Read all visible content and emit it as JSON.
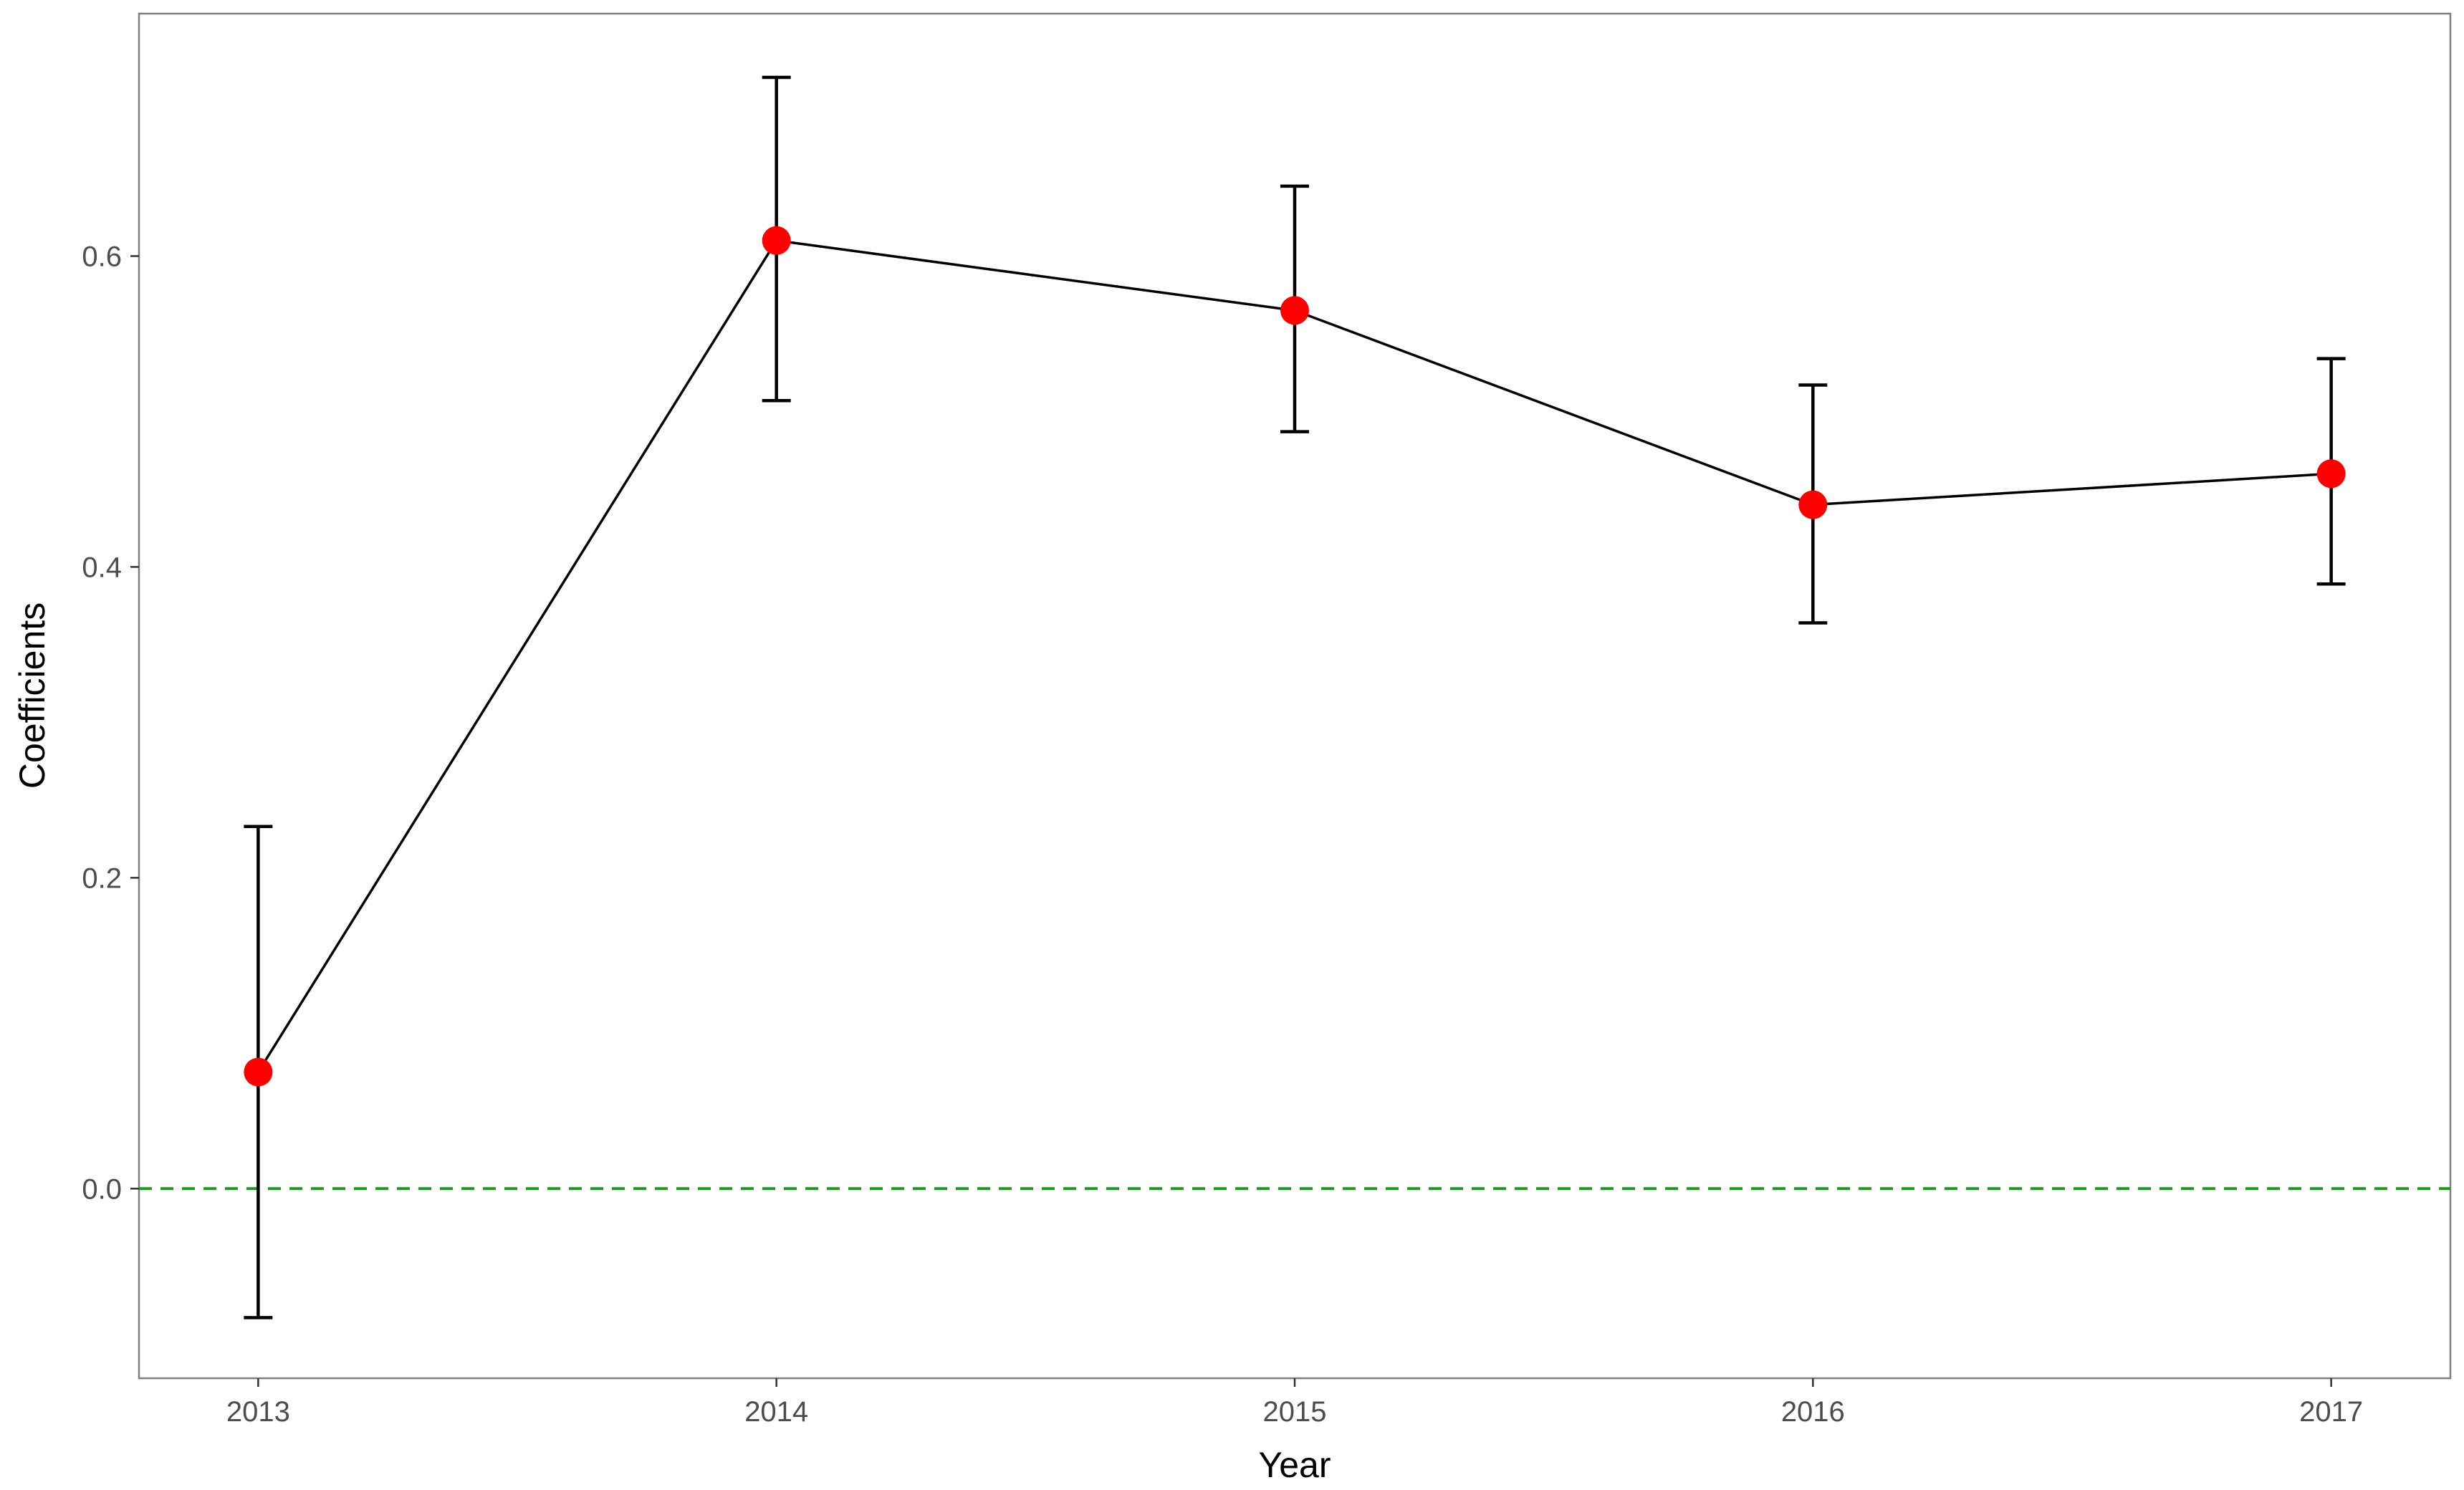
{
  "chart_data": {
    "type": "line",
    "title": "",
    "xlabel": "Year",
    "ylabel": "Coefficients",
    "x": [
      2013,
      2014,
      2015,
      2016,
      2017
    ],
    "series": [
      {
        "values": [
          0.075,
          0.61,
          0.565,
          0.44,
          0.46
        ],
        "error_lower": [
          -0.083,
          0.507,
          0.487,
          0.364,
          0.389
        ],
        "error_upper": [
          0.233,
          0.715,
          0.645,
          0.517,
          0.534
        ]
      }
    ],
    "x_ticks": [
      "2013",
      "2014",
      "2015",
      "2016",
      "2017"
    ],
    "y_ticks": [
      "0.0",
      "0.2",
      "0.4",
      "0.6"
    ],
    "y_tick_values": [
      0.0,
      0.2,
      0.4,
      0.6
    ],
    "xlim": [
      2012.77,
      2017.23
    ],
    "ylim": [
      -0.122,
      0.756
    ],
    "reference_line": {
      "y": 0.0,
      "style": "dashed",
      "color": "#1a9a1a"
    },
    "point_color": "#ff0000",
    "line_color": "#000000",
    "grid": false,
    "legend": "none"
  }
}
